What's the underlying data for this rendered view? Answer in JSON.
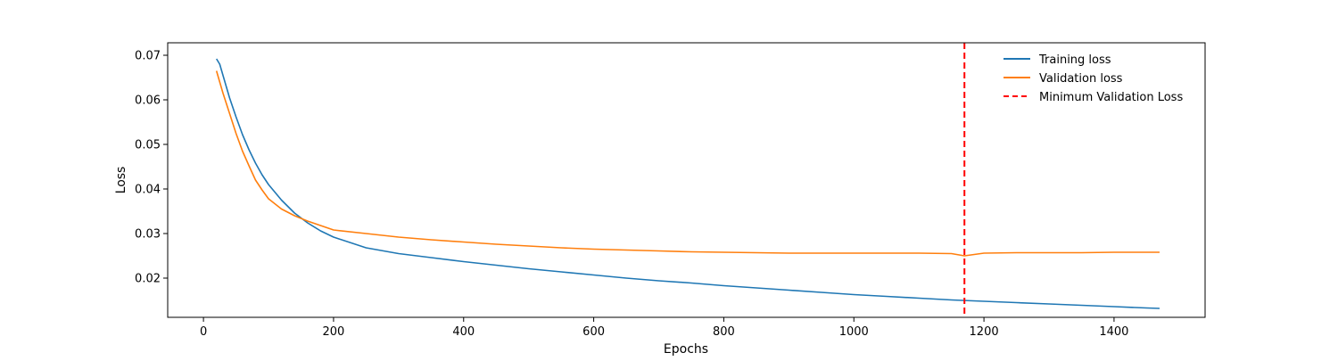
{
  "chart_data": {
    "type": "line",
    "xlabel": "Epochs",
    "ylabel": "Loss",
    "xlim": [
      -55,
      1540
    ],
    "ylim": [
      0.0112,
      0.0728
    ],
    "x_ticks": [
      0,
      200,
      400,
      600,
      800,
      1000,
      1200,
      1400
    ],
    "x_tick_labels": [
      "0",
      "200",
      "400",
      "600",
      "800",
      "1000",
      "1200",
      "1400"
    ],
    "y_ticks": [
      0.02,
      0.03,
      0.04,
      0.05,
      0.06,
      0.07
    ],
    "y_tick_labels": [
      "0.02",
      "0.03",
      "0.04",
      "0.05",
      "0.06",
      "0.07"
    ],
    "grid": false,
    "legend_position": "top-right",
    "series": [
      {
        "name": "Training loss",
        "color": "#1f77b4",
        "x": [
          20,
          25,
          30,
          40,
          50,
          60,
          70,
          80,
          90,
          100,
          120,
          140,
          160,
          180,
          200,
          250,
          300,
          350,
          400,
          450,
          500,
          550,
          600,
          650,
          700,
          750,
          800,
          850,
          900,
          950,
          1000,
          1050,
          1100,
          1150,
          1200,
          1250,
          1300,
          1350,
          1400,
          1450,
          1470
        ],
        "y": [
          0.0692,
          0.068,
          0.0655,
          0.0605,
          0.0562,
          0.0522,
          0.0488,
          0.0458,
          0.0432,
          0.041,
          0.0375,
          0.0346,
          0.0324,
          0.0306,
          0.0292,
          0.0268,
          0.0255,
          0.0246,
          0.0237,
          0.0229,
          0.0221,
          0.0214,
          0.0207,
          0.02,
          0.0194,
          0.0189,
          0.0183,
          0.0178,
          0.0173,
          0.0168,
          0.0163,
          0.0159,
          0.0155,
          0.0151,
          0.0148,
          0.0145,
          0.0142,
          0.0139,
          0.0136,
          0.0133,
          0.0132
        ]
      },
      {
        "name": "Validation loss",
        "color": "#ff7f0e",
        "x": [
          20,
          25,
          30,
          40,
          50,
          60,
          70,
          80,
          90,
          100,
          120,
          140,
          160,
          180,
          200,
          250,
          300,
          350,
          400,
          450,
          500,
          550,
          600,
          650,
          700,
          750,
          800,
          850,
          900,
          950,
          1000,
          1050,
          1100,
          1150,
          1170,
          1200,
          1250,
          1300,
          1350,
          1400,
          1450,
          1470
        ],
        "y": [
          0.0665,
          0.064,
          0.0615,
          0.057,
          0.0525,
          0.0485,
          0.0452,
          0.042,
          0.0398,
          0.0378,
          0.0355,
          0.034,
          0.0328,
          0.0318,
          0.0308,
          0.03,
          0.0292,
          0.0286,
          0.0281,
          0.0276,
          0.0272,
          0.0268,
          0.0265,
          0.0263,
          0.0261,
          0.0259,
          0.0258,
          0.0257,
          0.0256,
          0.0256,
          0.0256,
          0.0256,
          0.0256,
          0.0255,
          0.025,
          0.0256,
          0.0257,
          0.0257,
          0.0257,
          0.0258,
          0.0258,
          0.0258
        ]
      }
    ],
    "vertical_line": {
      "name": "Minimum Validation Loss",
      "x": 1170,
      "color": "#ff0000",
      "style": "dashed"
    }
  }
}
